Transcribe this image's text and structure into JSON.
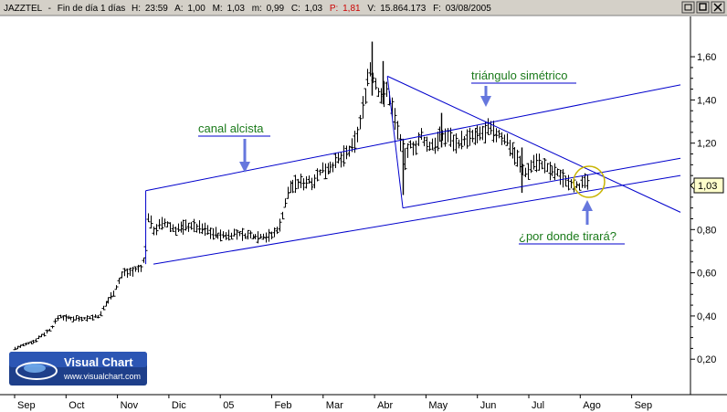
{
  "header": {
    "symbol": "JAZZTEL",
    "period": "Fin de día 1 días",
    "time_label": "H:",
    "time": "23:59",
    "open_label": "A:",
    "open": "1,00",
    "high_label": "M:",
    "high": "1,03",
    "low_label": "m:",
    "low": "0,99",
    "close_label": "C:",
    "close": "1,03",
    "change_label": "P:",
    "change": "1,81",
    "volume_label": "V:",
    "volume": "15.864.173",
    "date_label": "F:",
    "date": "03/08/2005"
  },
  "colors": {
    "background": "#ffffff",
    "header_bg": "#d4d0c8",
    "price": "#000000",
    "lines": "#0000cc",
    "annotation_text": "#1a7a1a",
    "arrow": "#6677dd",
    "last_price_bg": "#ffffcc",
    "circle": "#c8b400",
    "change_color": "#cc0000"
  },
  "last_price_label": "1,03",
  "annotations": {
    "triangle": "triángulo simétrico",
    "channel": "canal alcista",
    "question": "¿por donde tirará?"
  },
  "logo": {
    "title": "Visual Chart",
    "url": "www.visualchart.com"
  },
  "chart_data": {
    "type": "ohlc",
    "title": "JAZZTEL",
    "x_tick_labels": [
      "Sep",
      "Oct",
      "Nov",
      "Dic",
      "05",
      "Feb",
      "Mar",
      "Abr",
      "May",
      "Jun",
      "Jul",
      "Ago",
      "Sep"
    ],
    "y_tick_labels": [
      "0,20",
      "0,40",
      "0,60",
      "0,80",
      "1,00",
      "1,20",
      "1,40",
      "1,60"
    ],
    "y_ticks": [
      0.2,
      0.4,
      0.6,
      0.8,
      1.0,
      1.2,
      1.4,
      1.6
    ],
    "ylim": [
      0.13,
      1.72
    ],
    "xlim": [
      0,
      12.8
    ],
    "grid": false,
    "price_path": [
      [
        0.0,
        0.25
      ],
      [
        0.35,
        0.28
      ],
      [
        0.7,
        0.34
      ],
      [
        0.85,
        0.4
      ],
      [
        1.0,
        0.39
      ],
      [
        1.4,
        0.39
      ],
      [
        1.65,
        0.4
      ],
      [
        1.75,
        0.45
      ],
      [
        1.95,
        0.52
      ],
      [
        2.1,
        0.6
      ],
      [
        2.3,
        0.61
      ],
      [
        2.45,
        0.62
      ],
      [
        2.55,
        0.71
      ],
      [
        2.6,
        0.86
      ],
      [
        2.7,
        0.8
      ],
      [
        2.9,
        0.83
      ],
      [
        3.1,
        0.8
      ],
      [
        3.4,
        0.82
      ],
      [
        3.7,
        0.8
      ],
      [
        4.0,
        0.77
      ],
      [
        4.3,
        0.78
      ],
      [
        4.6,
        0.77
      ],
      [
        5.0,
        0.77
      ],
      [
        5.15,
        0.82
      ],
      [
        5.25,
        0.92
      ],
      [
        5.35,
        1.0
      ],
      [
        5.6,
        1.02
      ],
      [
        5.8,
        1.03
      ],
      [
        6.0,
        1.08
      ],
      [
        6.2,
        1.1
      ],
      [
        6.4,
        1.14
      ],
      [
        6.55,
        1.17
      ],
      [
        6.7,
        1.28
      ],
      [
        6.8,
        1.42
      ],
      [
        6.9,
        1.55
      ],
      [
        7.0,
        1.48
      ],
      [
        7.1,
        1.42
      ],
      [
        7.25,
        1.44
      ],
      [
        7.35,
        1.35
      ],
      [
        7.5,
        1.2
      ],
      [
        7.6,
        1.12
      ],
      [
        7.7,
        1.2
      ],
      [
        7.8,
        1.18
      ],
      [
        7.9,
        1.23
      ],
      [
        8.05,
        1.18
      ],
      [
        8.25,
        1.22
      ],
      [
        8.4,
        1.24
      ],
      [
        8.6,
        1.2
      ],
      [
        8.8,
        1.22
      ],
      [
        9.0,
        1.23
      ],
      [
        9.2,
        1.26
      ],
      [
        9.4,
        1.24
      ],
      [
        9.6,
        1.2
      ],
      [
        9.8,
        1.12
      ],
      [
        9.9,
        1.06
      ],
      [
        10.0,
        1.08
      ],
      [
        10.1,
        1.12
      ],
      [
        10.25,
        1.1
      ],
      [
        10.4,
        1.07
      ],
      [
        10.55,
        1.06
      ],
      [
        10.7,
        1.03
      ],
      [
        10.85,
        1.02
      ],
      [
        11.0,
        1.0
      ],
      [
        11.15,
        1.03
      ]
    ],
    "spikes": [
      {
        "x": 6.95,
        "high": 1.67,
        "low": 1.42
      },
      {
        "x": 7.15,
        "high": 1.58,
        "low": 1.38
      },
      {
        "x": 7.55,
        "high": 1.22,
        "low": 0.96
      },
      {
        "x": 9.85,
        "high": 1.18,
        "low": 0.97
      },
      {
        "x": 8.3,
        "high": 1.34,
        "low": 1.18
      }
    ],
    "trendlines": [
      {
        "name": "channel-upper",
        "points": [
          [
            2.55,
            0.98
          ],
          [
            12.95,
            1.47
          ]
        ]
      },
      {
        "name": "channel-lower",
        "points": [
          [
            2.7,
            0.64
          ],
          [
            12.95,
            1.05
          ]
        ]
      },
      {
        "name": "triangle-upper",
        "points": [
          [
            7.25,
            1.51
          ],
          [
            12.95,
            0.88
          ]
        ]
      },
      {
        "name": "triangle-lower",
        "points": [
          [
            7.55,
            0.9
          ],
          [
            12.95,
            1.13
          ]
        ]
      }
    ]
  }
}
